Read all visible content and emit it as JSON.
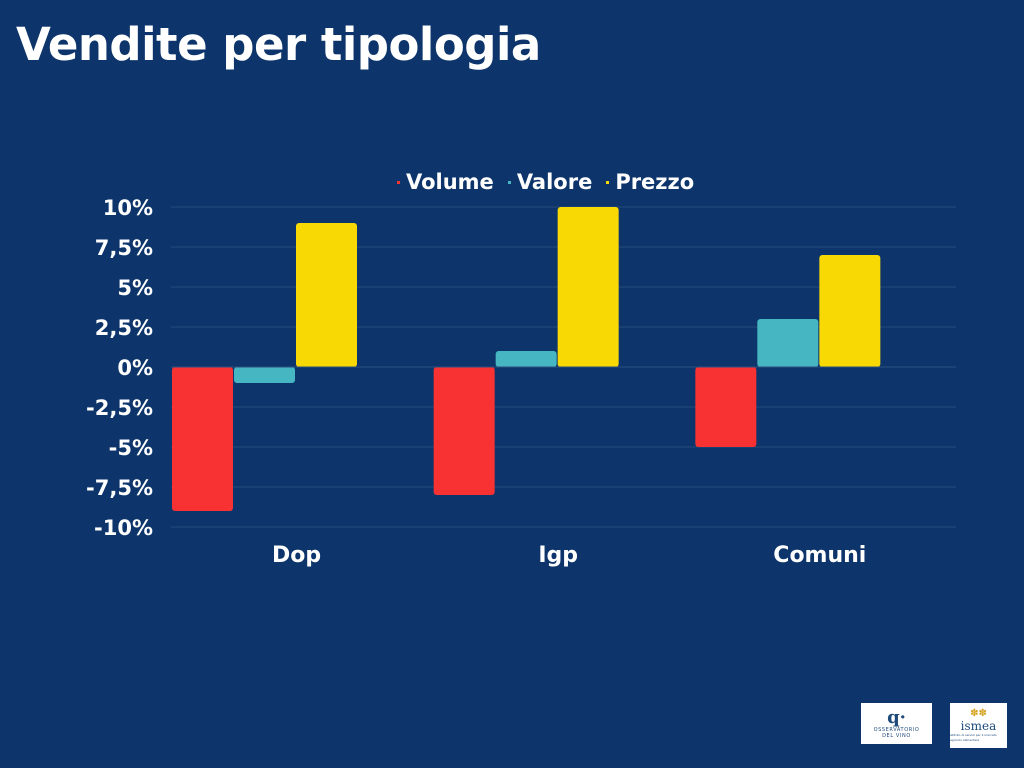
{
  "title": "Vendite per tipologia",
  "chart_data": {
    "type": "bar",
    "categories": [
      "Dop",
      "Igp",
      "Comuni"
    ],
    "series": [
      {
        "name": "Volume",
        "color": "#f83232",
        "values": [
          -9,
          -8,
          -5
        ]
      },
      {
        "name": "Valore",
        "color": "#45b6c2",
        "values": [
          -1,
          1,
          3
        ]
      },
      {
        "name": "Prezzo",
        "color": "#f9d904",
        "values": [
          9,
          10,
          7
        ]
      }
    ],
    "y_ticks": [
      10,
      7.5,
      5,
      2.5,
      0,
      -2.5,
      -5,
      -7.5,
      -10
    ],
    "y_tick_labels": [
      "10%",
      "7,5%",
      "5%",
      "2,5%",
      "0%",
      "-2,5%",
      "-5%",
      "-7,5%",
      "-10%"
    ],
    "ylim": [
      -10,
      10
    ],
    "grid": true,
    "legend_position": "top"
  },
  "logos": {
    "osservatorio": {
      "mark": "q·",
      "text_1": "OSSERVATORIO",
      "text_2": "DEL VINO"
    },
    "ismea": {
      "mark": "✽✽",
      "text": "ismea",
      "sub": "istituto di servizi per il mercato agricolo alimentare"
    }
  }
}
